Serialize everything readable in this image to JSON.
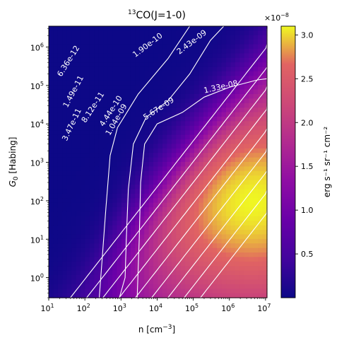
{
  "chart_data": {
    "type": "heatmap",
    "title_prefix": "13",
    "title_main": "CO(J=1-0)",
    "xlabel": "n [cm",
    "xlabel_sup": "−3",
    "xlabel_close": "]",
    "ylabel_sym": "G",
    "ylabel_sub": "0",
    "ylabel_rest": " [Habing]",
    "x_scale": "log",
    "y_scale": "log",
    "xlim": [
      10,
      11000000
    ],
    "ylim": [
      0.3,
      3500000
    ],
    "x_ticks": [
      {
        "value": 10,
        "base": "10",
        "exp": "1"
      },
      {
        "value": 100,
        "base": "10",
        "exp": "2"
      },
      {
        "value": 1000,
        "base": "10",
        "exp": "3"
      },
      {
        "value": 10000,
        "base": "10",
        "exp": "4"
      },
      {
        "value": 100000,
        "base": "10",
        "exp": "5"
      },
      {
        "value": 1000000,
        "base": "10",
        "exp": "6"
      },
      {
        "value": 10000000,
        "base": "10",
        "exp": "7"
      }
    ],
    "y_ticks": [
      {
        "value": 1,
        "base": "10",
        "exp": "0"
      },
      {
        "value": 10,
        "base": "10",
        "exp": "1"
      },
      {
        "value": 100,
        "base": "10",
        "exp": "2"
      },
      {
        "value": 1000,
        "base": "10",
        "exp": "3"
      },
      {
        "value": 10000,
        "base": "10",
        "exp": "4"
      },
      {
        "value": 100000,
        "base": "10",
        "exp": "5"
      },
      {
        "value": 1000000,
        "base": "10",
        "exp": "6"
      }
    ],
    "colorbar": {
      "colormap": "plasma",
      "vmin": 0.0,
      "vmax": 3.1,
      "ticks": [
        "0.5",
        "1.0",
        "1.5",
        "2.0",
        "2.5",
        "3.0"
      ],
      "multiplier_base": "×10",
      "multiplier_exp": "−8",
      "label": "erg s⁻¹ sr⁻¹ cm⁻²"
    },
    "field_model": {
      "description_units": "intensity in units of 1e-8 erg s^-1 sr^-1 cm^-2",
      "peak_log_n": 6.6,
      "peak_log_g0": 2.0,
      "peak_value": 3.1
    },
    "contour_labels": [
      {
        "text": "6.36e-12",
        "x": 40,
        "y": 400000,
        "angle": -58
      },
      {
        "text": "1.49e-11",
        "x": 55,
        "y": 65000,
        "angle": -62
      },
      {
        "text": "3.47e-11",
        "x": 50,
        "y": 9000,
        "angle": -65
      },
      {
        "text": "8.12e-11",
        "x": 190,
        "y": 25000,
        "angle": -57
      },
      {
        "text": "1.90e-10",
        "x": 6000,
        "y": 1000000,
        "angle": -37
      },
      {
        "text": "4.44e-10",
        "x": 600,
        "y": 20000,
        "angle": -57
      },
      {
        "text": "1.04e-09",
        "x": 850,
        "y": 12000,
        "angle": -60
      },
      {
        "text": "2.43e-09",
        "x": 100000,
        "y": 1200000,
        "angle": -37
      },
      {
        "text": "5.67e-09",
        "x": 12000,
        "y": 22000,
        "angle": -33
      },
      {
        "text": "1.33e-08",
        "x": 600000,
        "y": 80000,
        "angle": -13
      }
    ]
  }
}
